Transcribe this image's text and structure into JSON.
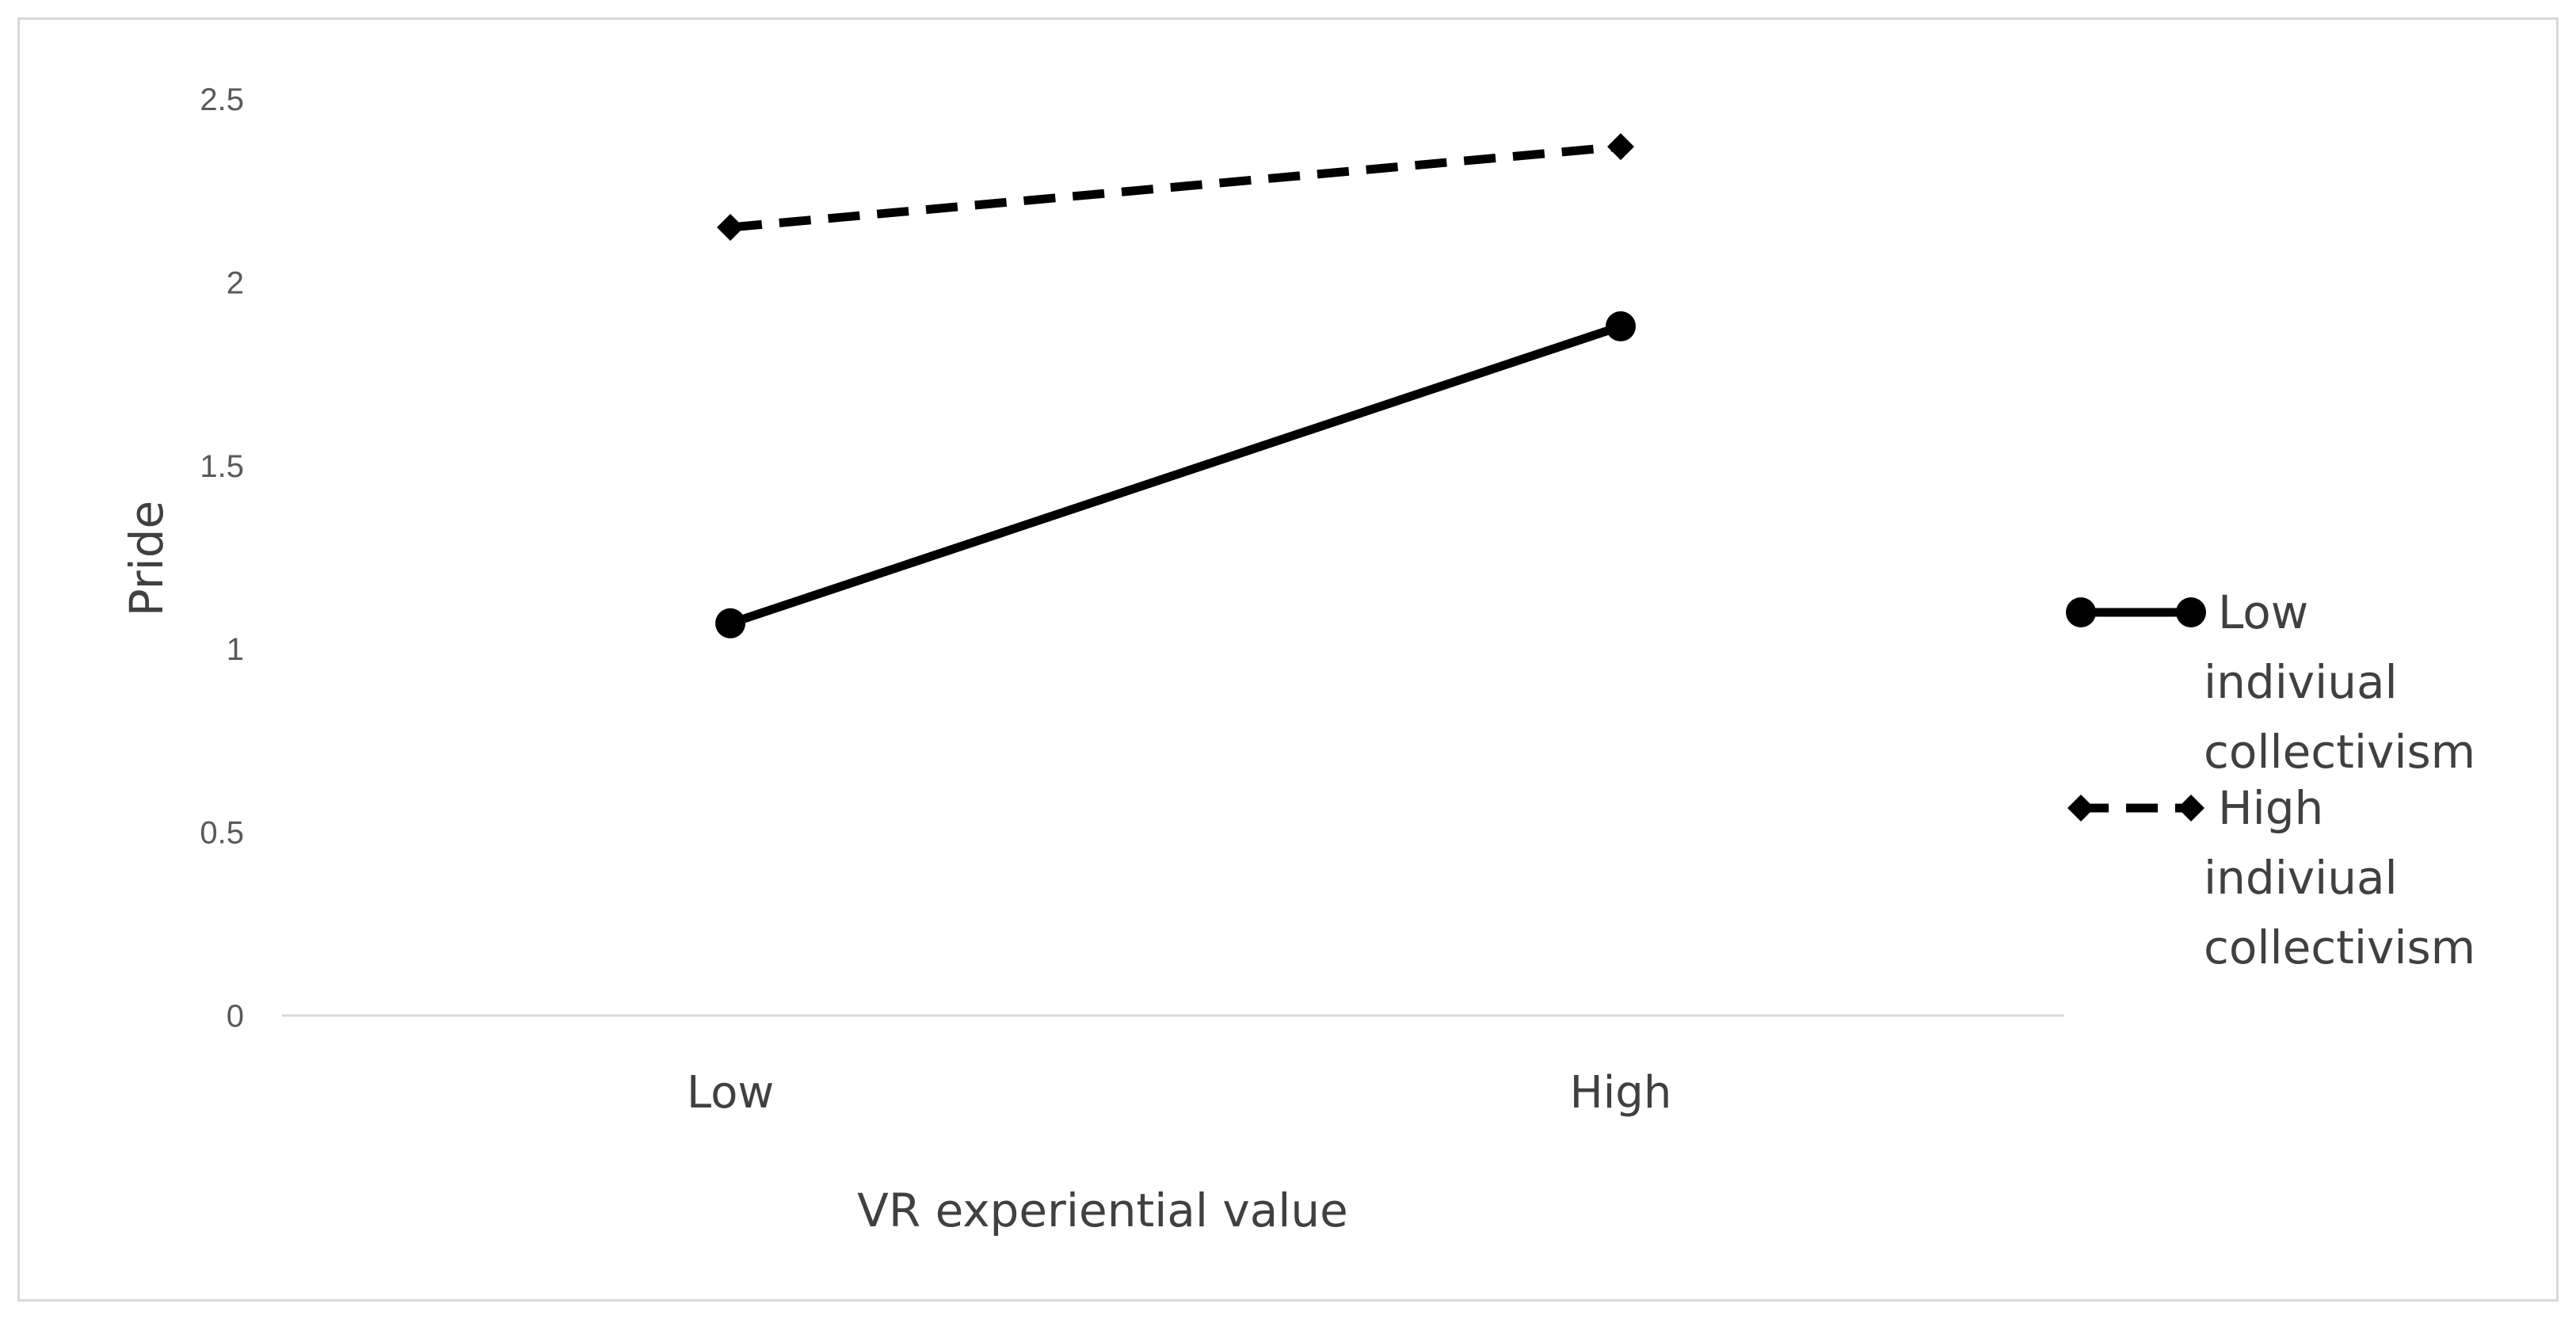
{
  "chart_data": {
    "type": "line",
    "title": "",
    "xlabel": "VR experiential value",
    "ylabel": "Pride",
    "categories": [
      "Low",
      "High"
    ],
    "ylim": [
      0,
      2.5
    ],
    "yticks": [
      0,
      0.5,
      1,
      1.5,
      2,
      2.5
    ],
    "ytick_labels": [
      "0",
      "0.5",
      "1",
      "1.5",
      "2",
      "2.5"
    ],
    "grid": false,
    "legend_position": "right",
    "series": [
      {
        "name": "Low indiviual collectivism",
        "name_lines": [
          "Low",
          "indiviual",
          "collectivism"
        ],
        "values": [
          1.07,
          1.88
        ],
        "line_style": "solid",
        "marker": "circle",
        "color": "#000000"
      },
      {
        "name": "High indiviual collectivism",
        "name_lines": [
          "High",
          "indiviual",
          "collectivism"
        ],
        "values": [
          2.15,
          2.37
        ],
        "line_style": "dashed",
        "marker": "diamond",
        "color": "#000000"
      }
    ]
  }
}
